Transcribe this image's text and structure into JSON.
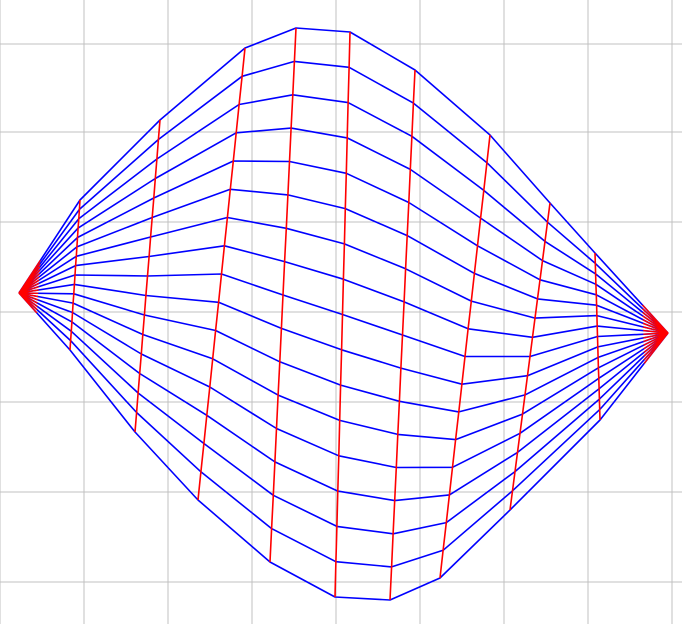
{
  "figure": {
    "type": "curvilinear-mesh-grid",
    "grid_visible": true
  },
  "colors": {
    "background": "#ffffff",
    "grid": "#c0c0c0",
    "mesh_lines_primary": "#0000ff",
    "mesh_lines_secondary": "#ff0000"
  },
  "mesh": {
    "primary_lines": 17,
    "secondary_lines": 11
  }
}
